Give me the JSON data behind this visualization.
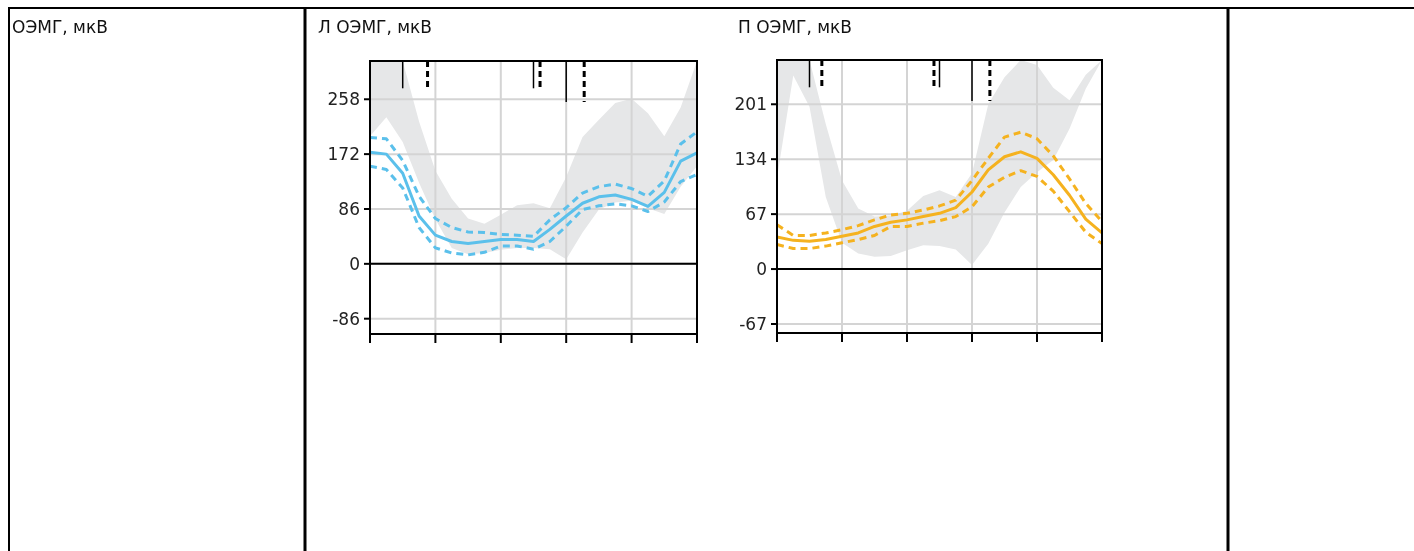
{
  "chart_data": [
    {
      "type": "line",
      "title": "Л ОЭМГ, мкВ",
      "annotations": [
        "ОЭМГ, мкВ"
      ],
      "categories": [
        null,
        null,
        null,
        null,
        null,
        null,
        null,
        null,
        null,
        null,
        null,
        null,
        null,
        null,
        null,
        null,
        null,
        null,
        null,
        null,
        null
      ],
      "ylim": [
        -110,
        318
      ],
      "yticks": [
        -86,
        0,
        86,
        172,
        258
      ],
      "grid": true,
      "series": [
        {
          "color": "#5bc0eb",
          "values": [
            175,
            172,
            142,
            75,
            45,
            35,
            32,
            35,
            38,
            38,
            35,
            54,
            75,
            95,
            105,
            108,
            101,
            90,
            112,
            161,
            174
          ],
          "lower": [
            200,
            230,
            191,
            127,
            70,
            25,
            15,
            17,
            22,
            25,
            25,
            23,
            7,
            49,
            85,
            96,
            99,
            87,
            78,
            121,
            153
          ],
          "upper": [
            318,
            318,
            318,
            223,
            146,
            102,
            71,
            63,
            77,
            92,
            95,
            87,
            136,
            199,
            226,
            252,
            259,
            236,
            200,
            245,
            318
          ]
        },
        {
          "color": "#5bc0eb",
          "line_style": "dashed",
          "values": [
            198,
            196,
            162,
            106,
            71,
            57,
            50,
            49,
            46,
            45,
            43,
            69,
            88,
            111,
            121,
            125,
            118,
            106,
            130,
            188,
            207
          ]
        },
        {
          "color": "#5bc0eb",
          "line_style": "dashed",
          "values": [
            153,
            148,
            119,
            57,
            25,
            17,
            14,
            18,
            28,
            28,
            23,
            35,
            59,
            85,
            91,
            94,
            91,
            82,
            97,
            129,
            140
          ]
        }
      ]
    },
    {
      "type": "line",
      "title": "П ОЭМГ, мкВ",
      "categories": [
        null,
        null,
        null,
        null,
        null,
        null,
        null,
        null,
        null,
        null,
        null,
        null,
        null,
        null,
        null,
        null,
        null,
        null,
        null,
        null,
        null
      ],
      "ylim": [
        -78,
        255
      ],
      "yticks": [
        -67,
        0,
        67,
        134,
        201
      ],
      "grid": true,
      "series": [
        {
          "color": "#f5b21f",
          "values": [
            39,
            35,
            34,
            36,
            40,
            44,
            52,
            57,
            60,
            64,
            68,
            75,
            94,
            121,
            137,
            143,
            135,
            115,
            90,
            61,
            44
          ],
          "lower": [
            111,
            236,
            198,
            88,
            32,
            19,
            15,
            16,
            23,
            29,
            28,
            24,
            5,
            31,
            69,
            100,
            118,
            133,
            171,
            220,
            255
          ],
          "upper": [
            255,
            255,
            255,
            177,
            108,
            74,
            64,
            65,
            71,
            89,
            96,
            88,
            117,
            201,
            234,
            255,
            249,
            221,
            206,
            237,
            255
          ]
        },
        {
          "color": "#f5b21f",
          "line_style": "dashed",
          "values": [
            54,
            41,
            41,
            44,
            48,
            53,
            60,
            66,
            68,
            72,
            77,
            84,
            108,
            135,
            161,
            167,
            159,
            138,
            110,
            80,
            58
          ]
        },
        {
          "color": "#f5b21f",
          "line_style": "dashed",
          "values": [
            30,
            25,
            25,
            28,
            32,
            36,
            41,
            52,
            52,
            56,
            59,
            64,
            76,
            100,
            112,
            120,
            113,
            95,
            70,
            45,
            31
          ]
        }
      ]
    }
  ]
}
